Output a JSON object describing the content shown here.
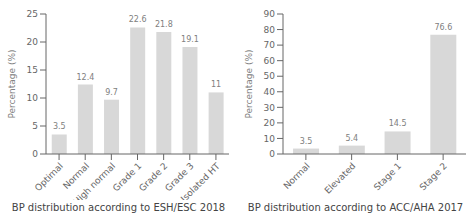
{
  "chart_data": [
    {
      "type": "bar",
      "title": "BP distribution according to ESH/ESC 2018",
      "categories": [
        "Optimal",
        "Normal",
        "High normal",
        "Grade 1",
        "Grade 2",
        "Grade 3",
        "Isolated HT"
      ],
      "values": [
        3.5,
        12.4,
        9.7,
        22.6,
        21.8,
        19.1,
        11
      ],
      "ylabel": "Percentage (%)",
      "ylim": [
        0,
        25
      ],
      "yticks": [
        0,
        5,
        10,
        15,
        20,
        25
      ],
      "color": "#d8d8d8",
      "data_labels": true,
      "grid": false
    },
    {
      "type": "bar",
      "title": "BP distribution according to ACC/AHA 2017",
      "categories": [
        "Normal",
        "Elevated",
        "Stage 1",
        "Stage 2"
      ],
      "values": [
        3.5,
        5.4,
        14.5,
        76.6
      ],
      "ylabel": "Percentage (%)",
      "ylim": [
        0,
        90
      ],
      "yticks": [
        0,
        10,
        20,
        30,
        40,
        50,
        60,
        70,
        80,
        90
      ],
      "color": "#d8d8d8",
      "data_labels": true,
      "grid": false
    }
  ]
}
